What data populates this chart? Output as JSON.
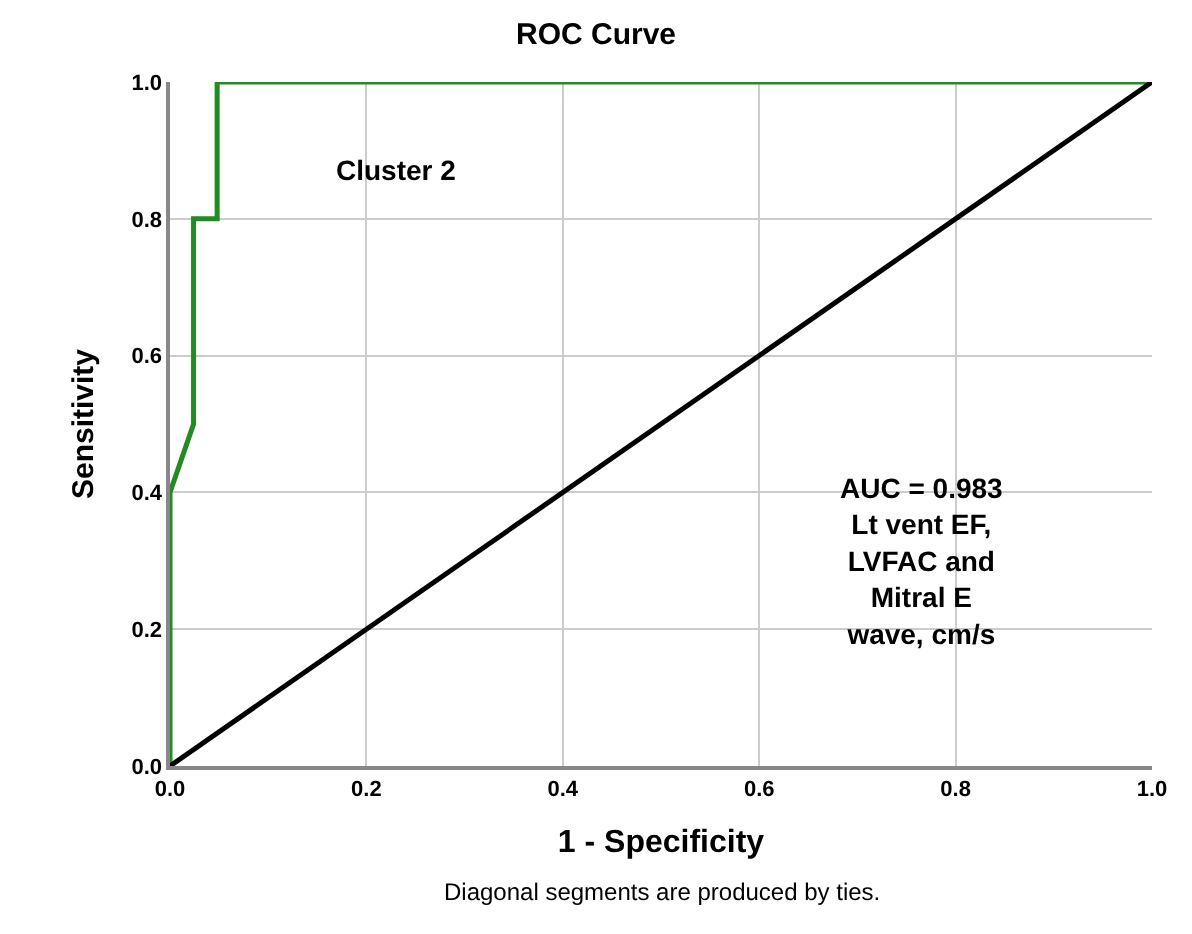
{
  "chart_data": {
    "type": "line",
    "title": "ROC Curve",
    "xlabel": "1 - Specificity",
    "ylabel": "Sensitivity",
    "series": [
      {
        "color": "#228b22",
        "x": [
          0,
          0,
          0.024,
          0.024,
          0.048,
          0.048,
          1
        ],
        "values": [
          0,
          0.4,
          0.5,
          0.8,
          0.8,
          1,
          1
        ]
      },
      {
        "color": "#000000",
        "x": [
          0,
          1
        ],
        "values": [
          0,
          1
        ]
      }
    ],
    "annotations": [
      "Cluster 2",
      "AUC = 0.983\nLt vent EF,\nLVFAC and\nMitral E\nwave, cm/s",
      "Diagonal segments are produced by ties."
    ],
    "xlim": [
      0,
      1
    ],
    "ylim": [
      0,
      1
    ],
    "xticks": [
      {
        "value": 0,
        "label": "0.0"
      },
      0.2,
      0.4,
      0.6,
      0.8,
      {
        "value": 1,
        "label": "1.0"
      }
    ],
    "yticks": [
      {
        "value": 0,
        "label": "0.0"
      },
      0.2,
      0.4,
      0.6,
      0.8,
      {
        "value": 1,
        "label": "1.0"
      }
    ],
    "grid": true,
    "legend": false,
    "marker": "none",
    "line_style": "solid"
  }
}
